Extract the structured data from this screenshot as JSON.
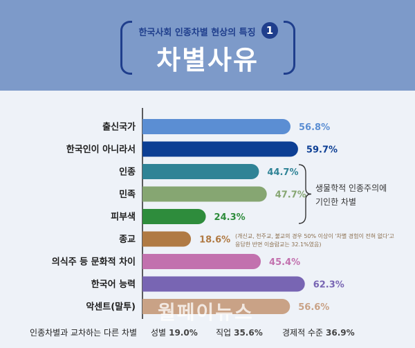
{
  "header": {
    "subtitle": "한국사회 인종차별 현상의 특징",
    "number": "1",
    "title": "차별사유"
  },
  "chart_data": {
    "type": "bar",
    "orientation": "horizontal",
    "unit": "%",
    "categories": [
      "출신국가",
      "한국인이 아니라서",
      "인종",
      "민족",
      "피부색",
      "종교",
      "의식주 등 문화적 차이",
      "한국어 능력",
      "악센트(말투)"
    ],
    "values": [
      56.8,
      59.7,
      44.7,
      47.7,
      24.3,
      18.6,
      45.4,
      62.3,
      56.6
    ],
    "colors": [
      "#5b8ed3",
      "#0d3f94",
      "#2f8396",
      "#86a672",
      "#2e8c3c",
      "#b07a44",
      "#c271ae",
      "#7865b3",
      "#c9a286"
    ],
    "xlim": [
      0,
      70
    ],
    "grid": false,
    "legend": "none"
  },
  "annotations": {
    "brace_note_line1": "생물학적 인종주의에",
    "brace_note_line2": "기인한 차별",
    "religion_note_line1": "(개신교, 천주교, 불교의 경우 50% 이상이 '차별 경험이 전혀 없다'고",
    "religion_note_line2": "응답한 반면 이슬람교는 32.1%였음)"
  },
  "intersectional": {
    "label": "인종차별과 교차하는 다른 차별",
    "items": [
      {
        "label": "성별",
        "value": "19.0%"
      },
      {
        "label": "직업",
        "value": "35.6%"
      },
      {
        "label": "경제적 수준",
        "value": "36.9%"
      }
    ]
  },
  "watermark": "월페이뉴스"
}
